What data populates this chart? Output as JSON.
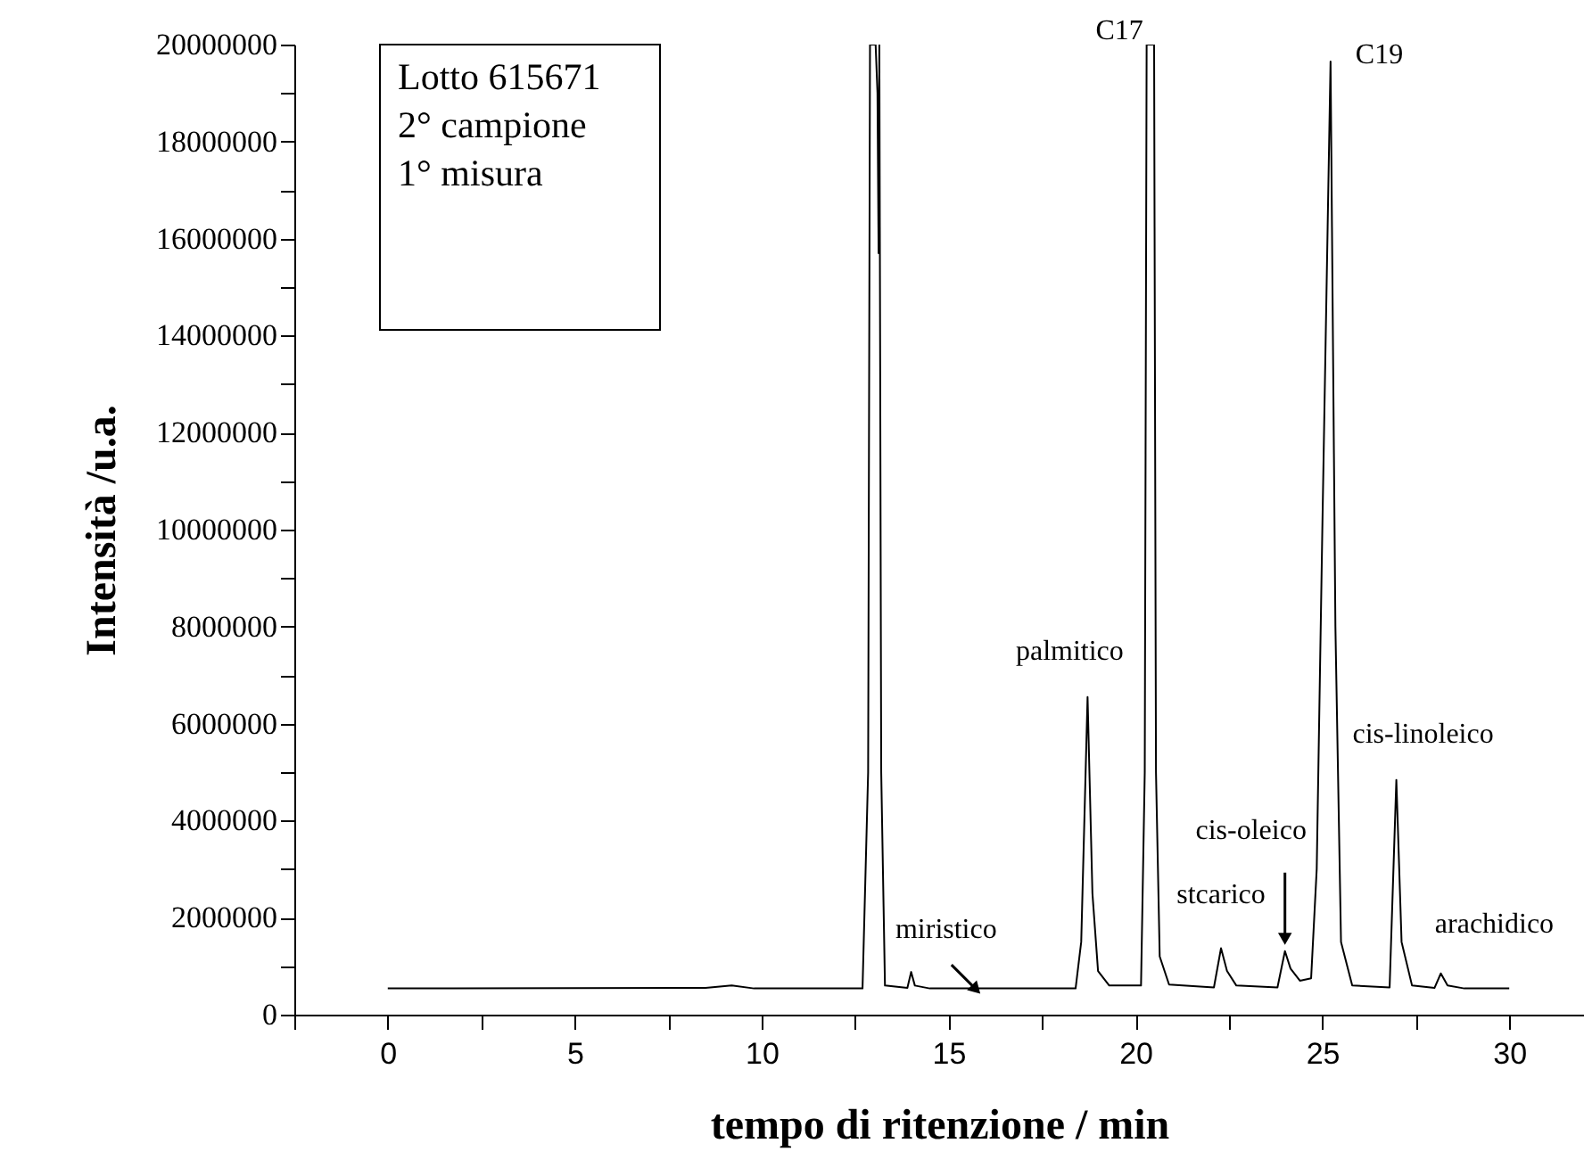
{
  "chart_data": {
    "type": "line",
    "xlabel": "tempo di ritenzione / min",
    "ylabel": "Intensità /u.a.",
    "x": [
      0,
      8.5,
      9.2,
      9.8,
      12.7,
      12.85,
      12.9,
      13.05,
      13.1,
      13.13,
      13.15,
      13.2,
      13.3,
      13.9,
      14.0,
      14.1,
      14.5,
      18.4,
      18.55,
      18.72,
      18.85,
      19.0,
      19.3,
      20.15,
      20.25,
      20.3,
      20.5,
      20.55,
      20.65,
      20.9,
      22.1,
      22.29,
      22.45,
      22.7,
      23.8,
      24.0,
      24.15,
      24.4,
      24.7,
      24.85,
      25.0,
      25.22,
      25.35,
      25.5,
      25.8,
      26.8,
      26.98,
      27.12,
      27.4,
      28.0,
      28.17,
      28.35,
      28.8,
      30
    ],
    "series": [
      {
        "color": "#000000",
        "values": [
          540000,
          550000,
          600000,
          540000,
          540000,
          5000000,
          20000000,
          20000000,
          19000000,
          15700000,
          20000000,
          5000000,
          600000,
          550000,
          880000,
          600000,
          540000,
          540000,
          1500000,
          6550000,
          2500000,
          900000,
          600000,
          600000,
          5000000,
          20000000,
          20000000,
          5000000,
          1200000,
          620000,
          560000,
          1370000,
          900000,
          600000,
          560000,
          1310000,
          950000,
          700000,
          750000,
          3000000,
          10000000,
          19650000,
          8000000,
          1500000,
          600000,
          560000,
          4840000,
          1500000,
          600000,
          550000,
          850000,
          600000,
          540000,
          540000
        ]
      }
    ],
    "xlim": [
      -2.5,
      32
    ],
    "ylim": [
      0,
      20000000
    ],
    "xticks": [
      {
        "value": -2.5,
        "label": null
      },
      0,
      {
        "value": 2.5,
        "label": null
      },
      5,
      {
        "value": 7.5,
        "label": null
      },
      10,
      {
        "value": 12.5,
        "label": null
      },
      15,
      {
        "value": 17.5,
        "label": null
      },
      20,
      {
        "value": 22.5,
        "label": null
      },
      25,
      {
        "value": 27.5,
        "label": null
      },
      30
    ],
    "yticks": [
      0,
      {
        "value": 1000000,
        "label": null
      },
      2000000,
      {
        "value": 3000000,
        "label": null
      },
      4000000,
      {
        "value": 5000000,
        "label": null
      },
      6000000,
      {
        "value": 7000000,
        "label": null
      },
      8000000,
      {
        "value": 9000000,
        "label": null
      },
      10000000,
      {
        "value": 11000000,
        "label": null
      },
      12000000,
      {
        "value": 13000000,
        "label": null
      },
      14000000,
      {
        "value": 15000000,
        "label": null
      },
      16000000,
      {
        "value": 17000000,
        "label": null
      },
      18000000,
      {
        "value": 19000000,
        "label": null
      },
      20000000
    ],
    "grid": false,
    "marker": "none",
    "line_style": "solid",
    "annotations": [
      "Lotto 615671\n2° campione\n1° misura",
      {
        "text": "C17",
        "x": 20.4,
        "y": 20000000
      },
      {
        "text": "C19",
        "x": 25.22,
        "y": 19650000
      },
      {
        "text": "palmitico",
        "x": 18.72,
        "y": 6550000
      },
      {
        "text": "miristico",
        "x": 15.7,
        "y": 550000
      },
      {
        "text": "stcarico",
        "x": 22.29,
        "y": 1370000
      },
      {
        "text": "cis-oleico",
        "x": 24.0,
        "y": 1310000
      },
      {
        "text": "cis-linoleico",
        "x": 26.98,
        "y": 4840000
      },
      {
        "text": "arachidico",
        "x": 28.17,
        "y": 850000
      }
    ]
  }
}
